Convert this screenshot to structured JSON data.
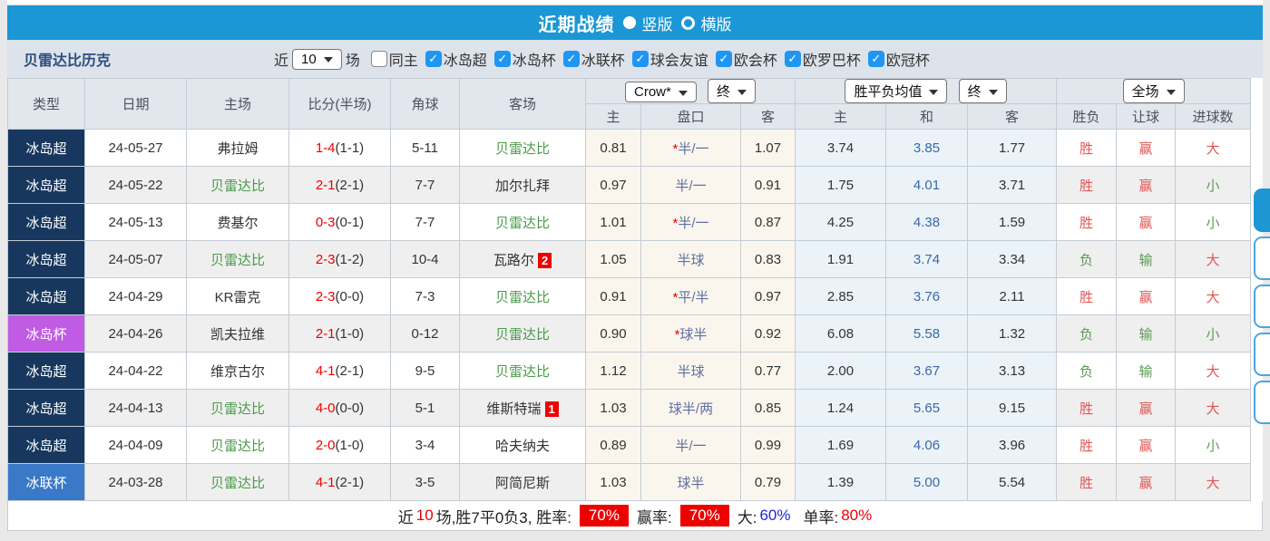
{
  "colors": {
    "accent_blue": "#1b97d5",
    "checkbox_blue": "#2096f3",
    "score_red": "#ee0000",
    "win_red": "#e25555",
    "loss_green": "#5d9a55",
    "team_green": "#4a9a4a"
  },
  "titlebar": {
    "title": "近期战绩",
    "radio_vertical": "竖版",
    "radio_horizontal": "横版",
    "selected": "竖版"
  },
  "filter": {
    "team": "贝雷达比历克",
    "near_label": "近",
    "matches_value": "10",
    "matches_suffix": "场",
    "checkboxes": [
      {
        "label": "同主",
        "checked": false
      },
      {
        "label": "冰岛超",
        "checked": true
      },
      {
        "label": "冰岛杯",
        "checked": true
      },
      {
        "label": "冰联杯",
        "checked": true
      },
      {
        "label": "球会友谊",
        "checked": true
      },
      {
        "label": "欧会杯",
        "checked": true
      },
      {
        "label": "欧罗巴杯",
        "checked": true
      },
      {
        "label": "欧冠杯",
        "checked": true
      }
    ]
  },
  "table": {
    "dropdowns": {
      "odds_source": "Crow*",
      "odds_time": "终",
      "avg_label": "胜平负均值",
      "avg_time": "终",
      "scope": "全场"
    },
    "col_headers": {
      "type": "类型",
      "date": "日期",
      "home": "主场",
      "score": "比分(半场)",
      "corner": "角球",
      "away": "客场",
      "odds_home": "主",
      "handicap": "盘口",
      "odds_away": "客",
      "avg_home": "主",
      "avg_draw": "和",
      "avg_away": "客",
      "result": "胜负",
      "handicap_result": "让球",
      "goals": "进球数"
    },
    "type_colors": {
      "冰岛超": "#17375e",
      "冰岛杯": "#c05ce4",
      "冰联杯": "#3a78c8"
    },
    "rows": [
      {
        "type": "冰岛超",
        "date": "24-05-27",
        "home": "弗拉姆",
        "home_green": false,
        "score": "1-4",
        "half": "(1-1)",
        "corner": "5-11",
        "away": "贝雷达比",
        "away_green": true,
        "away_card": "",
        "odds_h": "0.81",
        "handicap": "*半/一",
        "odds_a": "1.07",
        "avg_h": "3.74",
        "avg_d": "3.85",
        "avg_a": "1.77",
        "result": "胜",
        "handicap_result": "赢",
        "goals": "大"
      },
      {
        "type": "冰岛超",
        "date": "24-05-22",
        "home": "贝雷达比",
        "home_green": true,
        "score": "2-1",
        "half": "(2-1)",
        "corner": "7-7",
        "away": "加尔扎拜",
        "away_green": false,
        "away_card": "",
        "odds_h": "0.97",
        "handicap": "半/一",
        "odds_a": "0.91",
        "avg_h": "1.75",
        "avg_d": "4.01",
        "avg_a": "3.71",
        "result": "胜",
        "handicap_result": "赢",
        "goals": "小"
      },
      {
        "type": "冰岛超",
        "date": "24-05-13",
        "home": "费基尔",
        "home_green": false,
        "score": "0-3",
        "half": "(0-1)",
        "corner": "7-7",
        "away": "贝雷达比",
        "away_green": true,
        "away_card": "",
        "odds_h": "1.01",
        "handicap": "*半/一",
        "odds_a": "0.87",
        "avg_h": "4.25",
        "avg_d": "4.38",
        "avg_a": "1.59",
        "result": "胜",
        "handicap_result": "赢",
        "goals": "小"
      },
      {
        "type": "冰岛超",
        "date": "24-05-07",
        "home": "贝雷达比",
        "home_green": true,
        "score": "2-3",
        "half": "(1-2)",
        "corner": "10-4",
        "away": "瓦路尔",
        "away_green": false,
        "away_card": "2",
        "odds_h": "1.05",
        "handicap": "半球",
        "odds_a": "0.83",
        "avg_h": "1.91",
        "avg_d": "3.74",
        "avg_a": "3.34",
        "result": "负",
        "handicap_result": "输",
        "goals": "大"
      },
      {
        "type": "冰岛超",
        "date": "24-04-29",
        "home": "KR雷克",
        "home_green": false,
        "score": "2-3",
        "half": "(0-0)",
        "corner": "7-3",
        "away": "贝雷达比",
        "away_green": true,
        "away_card": "",
        "odds_h": "0.91",
        "handicap": "*平/半",
        "odds_a": "0.97",
        "avg_h": "2.85",
        "avg_d": "3.76",
        "avg_a": "2.11",
        "result": "胜",
        "handicap_result": "赢",
        "goals": "大"
      },
      {
        "type": "冰岛杯",
        "date": "24-04-26",
        "home": "凯夫拉维",
        "home_green": false,
        "score": "2-1",
        "half": "(1-0)",
        "corner": "0-12",
        "away": "贝雷达比",
        "away_green": true,
        "away_card": "",
        "odds_h": "0.90",
        "handicap": "*球半",
        "odds_a": "0.92",
        "avg_h": "6.08",
        "avg_d": "5.58",
        "avg_a": "1.32",
        "result": "负",
        "handicap_result": "输",
        "goals": "小"
      },
      {
        "type": "冰岛超",
        "date": "24-04-22",
        "home": "维京古尔",
        "home_green": false,
        "score": "4-1",
        "half": "(2-1)",
        "corner": "9-5",
        "away": "贝雷达比",
        "away_green": true,
        "away_card": "",
        "odds_h": "1.12",
        "handicap": "半球",
        "odds_a": "0.77",
        "avg_h": "2.00",
        "avg_d": "3.67",
        "avg_a": "3.13",
        "result": "负",
        "handicap_result": "输",
        "goals": "大"
      },
      {
        "type": "冰岛超",
        "date": "24-04-13",
        "home": "贝雷达比",
        "home_green": true,
        "score": "4-0",
        "half": "(0-0)",
        "corner": "5-1",
        "away": "维斯特瑞",
        "away_green": false,
        "away_card": "1",
        "odds_h": "1.03",
        "handicap": "球半/两",
        "odds_a": "0.85",
        "avg_h": "1.24",
        "avg_d": "5.65",
        "avg_a": "9.15",
        "result": "胜",
        "handicap_result": "赢",
        "goals": "大"
      },
      {
        "type": "冰岛超",
        "date": "24-04-09",
        "home": "贝雷达比",
        "home_green": true,
        "score": "2-0",
        "half": "(1-0)",
        "corner": "3-4",
        "away": "哈夫纳夫",
        "away_green": false,
        "away_card": "",
        "odds_h": "0.89",
        "handicap": "半/一",
        "odds_a": "0.99",
        "avg_h": "1.69",
        "avg_d": "4.06",
        "avg_a": "3.96",
        "result": "胜",
        "handicap_result": "赢",
        "goals": "小"
      },
      {
        "type": "冰联杯",
        "date": "24-03-28",
        "home": "贝雷达比",
        "home_green": true,
        "score": "4-1",
        "half": "(2-1)",
        "corner": "3-5",
        "away": "阿简尼斯",
        "away_green": false,
        "away_card": "",
        "odds_h": "1.03",
        "handicap": "球半",
        "odds_a": "0.79",
        "avg_h": "1.39",
        "avg_d": "5.00",
        "avg_a": "5.54",
        "result": "胜",
        "handicap_result": "赢",
        "goals": "大"
      }
    ]
  },
  "summary": {
    "near_label": "近",
    "near_count": "10",
    "record_text": "场,胜7平0负3, 胜率:",
    "win_rate": "70%",
    "profit_label": "赢率:",
    "profit_rate": "70%",
    "big_label": "大:",
    "big_rate": "60%",
    "single_label": "单率:",
    "single_rate": "80%"
  },
  "side_nav": {
    "count": 5,
    "active_index": 0
  }
}
